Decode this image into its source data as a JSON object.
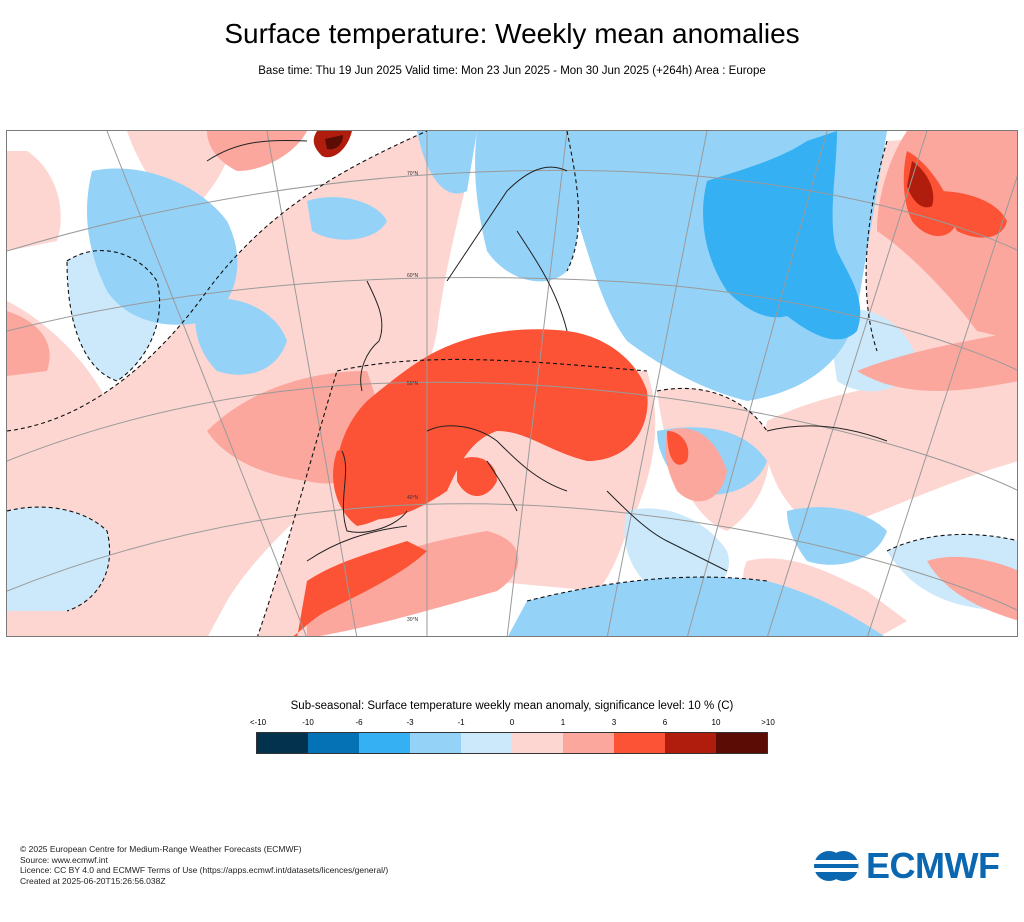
{
  "header": {
    "title": "Surface temperature: Weekly mean anomalies",
    "subtitle": "Base time: Thu 19 Jun 2025 Valid time: Mon 23 Jun 2025 - Mon 30 Jun 2025 (+264h) Area : Europe"
  },
  "map": {
    "area": "Europe",
    "latitude_labels": [
      "70°N",
      "60°N",
      "50°N",
      "40°N",
      "30°N"
    ]
  },
  "legend": {
    "title": "Sub-seasonal: Surface temperature weekly mean anomaly, significance level: 10 % (C)",
    "ticks": [
      "<-10",
      "-10",
      "-6",
      "-3",
      "-1",
      "0",
      "1",
      "3",
      "6",
      "10",
      ">10"
    ],
    "colors": [
      "#03324f",
      "#0572b6",
      "#34b0f3",
      "#94d2f8",
      "#cbe9fb",
      "#fdd6d1",
      "#fba79d",
      "#fc5235",
      "#b11d0d",
      "#5a0c05"
    ]
  },
  "footer": {
    "line1": "© 2025 European Centre for Medium-Range Weather Forecasts (ECMWF)",
    "line2": "Source: www.ecmwf.int",
    "line3": "Licence: CC BY 4.0 and ECMWF Terms of Use (https://apps.ecmwf.int/datasets/licences/general/)",
    "line4": "Created at 2025-06-20T15:26:56.038Z"
  },
  "logo": {
    "text": "ECMWF",
    "icon": "ecmwf-logo-icon"
  }
}
